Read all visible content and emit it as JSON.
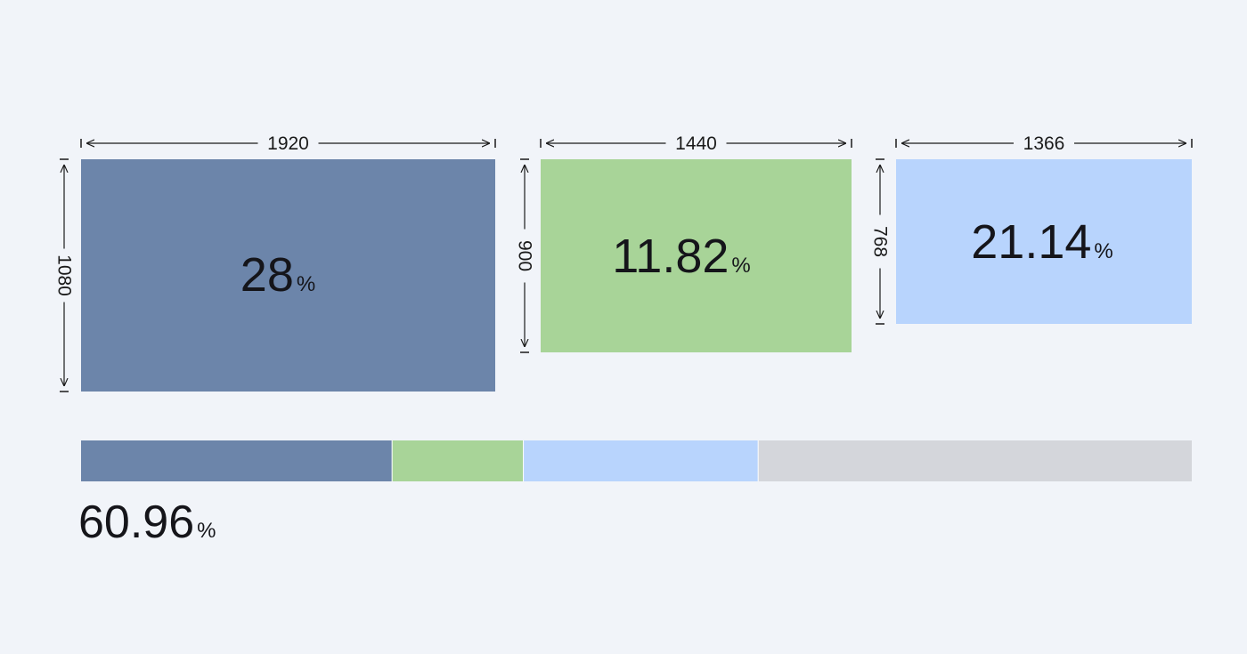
{
  "chart_data": {
    "type": "bar",
    "title": "",
    "resolutions": [
      {
        "width": "1920",
        "height": "1080",
        "share": 28,
        "label": "28",
        "color": "#6c85aa"
      },
      {
        "width": "1440",
        "height": "900",
        "share": 11.82,
        "label": "11.82",
        "color": "#a8d498"
      },
      {
        "width": "1366",
        "height": "768",
        "share": 21.14,
        "label": "21.14",
        "color": "#b8d4fd"
      }
    ],
    "remainder_color": "#d4d6db",
    "total": {
      "label": "60.96",
      "value": 60.96
    },
    "unit": "%"
  }
}
